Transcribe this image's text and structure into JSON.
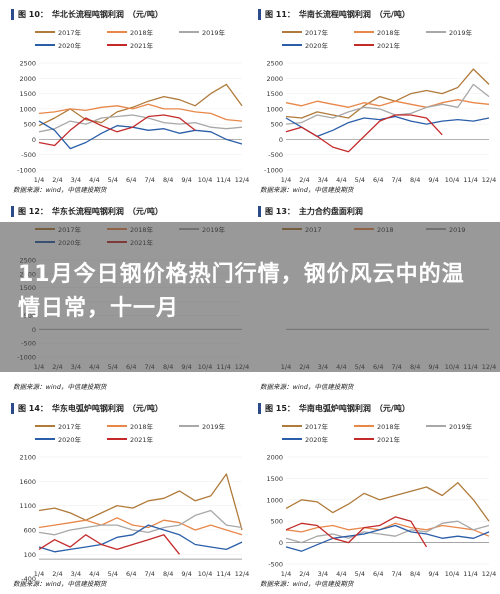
{
  "banner": {
    "text": "11月今日钢价格热门行情，钢价风云中的温情日常，十一月"
  },
  "panels": [
    {
      "id": "p10",
      "label": "图 10：",
      "title": "华北长流程吨钢利润",
      "unit": "（元/吨）",
      "source": "数据来源：wind，中信建投期货"
    },
    {
      "id": "p11",
      "label": "图 11：",
      "title": "华南长流程吨钢利润",
      "unit": "（元/吨）",
      "source": "数据来源：wind，中信建投期货"
    },
    {
      "id": "p12",
      "label": "图 12：",
      "title": "华东长流程吨钢利润",
      "unit": "（元/吨）",
      "source": "数据来源：wind，中信建投期货"
    },
    {
      "id": "p13",
      "label": "图 13：",
      "title": "主力合约盘面利润",
      "unit": "",
      "source": "数据来源：wind，中信建投期货"
    },
    {
      "id": "p14",
      "label": "图 14：",
      "title": "华东电弧炉吨钢利润",
      "unit": "（元/吨）",
      "source": "数据来源：wind，中信建投期货"
    },
    {
      "id": "p15",
      "label": "图 15：",
      "title": "华南电弧炉吨钢利润",
      "unit": "（元/吨）",
      "source": "数据来源：wind，中信建投期货"
    }
  ],
  "colors": {
    "2017": "#b07a3a",
    "2018": "#e8874a",
    "2019": "#a8a8a8",
    "2020": "#2a5ea8",
    "2021": "#c42a2a"
  },
  "chart_data": [
    {
      "type": "line",
      "panel": "p10",
      "ylim": [
        -1000,
        2500
      ],
      "yticks": [
        2500,
        2000,
        1500,
        1000,
        500,
        0,
        -500,
        -1000
      ],
      "xticks": [
        "1/4",
        "2/4",
        "3/4",
        "4/4",
        "5/4",
        "6/4",
        "7/4",
        "8/4",
        "9/4",
        "10/4",
        "11/4",
        "12/4"
      ],
      "series": [
        {
          "name": "2017年",
          "values": [
            450,
            700,
            1000,
            650,
            550,
            900,
            1050,
            1250,
            1400,
            1300,
            1100,
            1500,
            1800,
            1100
          ]
        },
        {
          "name": "2018年",
          "values": [
            850,
            900,
            1000,
            950,
            1050,
            1100,
            1000,
            1150,
            1000,
            1000,
            900,
            850,
            650,
            600
          ]
        },
        {
          "name": "2019年",
          "values": [
            250,
            350,
            600,
            500,
            700,
            750,
            800,
            700,
            550,
            500,
            550,
            400,
            350,
            400
          ]
        },
        {
          "name": "2020年",
          "values": [
            600,
            300,
            -300,
            -100,
            200,
            450,
            400,
            300,
            350,
            200,
            300,
            250,
            0,
            -150
          ]
        },
        {
          "name": "2021年",
          "values": [
            -100,
            -200,
            300,
            700,
            450,
            250,
            400,
            750,
            800,
            700,
            300
          ]
        }
      ]
    },
    {
      "type": "line",
      "panel": "p11",
      "ylim": [
        -1000,
        2500
      ],
      "yticks": [
        2500,
        2000,
        1500,
        1000,
        500,
        0,
        -500,
        -1000
      ],
      "xticks": [
        "1/4",
        "2/4",
        "3/4",
        "4/4",
        "5/4",
        "6/4",
        "7/4",
        "8/4",
        "9/4",
        "10/4",
        "11/4",
        "12/4"
      ],
      "series": [
        {
          "name": "2017年",
          "values": [
            750,
            700,
            900,
            800,
            700,
            1100,
            1400,
            1250,
            1500,
            1600,
            1500,
            1700,
            2300,
            1800
          ]
        },
        {
          "name": "2018年",
          "values": [
            1200,
            1100,
            1250,
            1150,
            1050,
            1200,
            1100,
            1250,
            1150,
            1050,
            1200,
            1300,
            1200,
            1150
          ]
        },
        {
          "name": "2019年",
          "values": [
            500,
            550,
            800,
            700,
            900,
            1050,
            1000,
            800,
            850,
            1050,
            1150,
            1050,
            1800,
            1400
          ]
        },
        {
          "name": "2020年",
          "values": [
            700,
            400,
            100,
            300,
            550,
            700,
            650,
            750,
            600,
            500,
            600,
            650,
            600,
            700
          ]
        },
        {
          "name": "2021年",
          "values": [
            250,
            400,
            100,
            -250,
            -400,
            100,
            600,
            800,
            800,
            700,
            150
          ]
        }
      ]
    },
    {
      "type": "line",
      "panel": "p12",
      "ylim": [
        -1000,
        2500
      ],
      "yticks": [
        2500,
        2000,
        1500,
        1000,
        500,
        0,
        -500,
        -1000
      ],
      "xticks": [
        "1/4",
        "2/4",
        "3/4",
        "4/4",
        "5/4",
        "6/4",
        "7/4",
        "8/4",
        "9/4",
        "10/4",
        "11/4",
        "12/4"
      ],
      "series": [
        {
          "name": "2017年",
          "values": [],
          "legend_only": true
        },
        {
          "name": "2018年",
          "values": [],
          "legend_only": true
        },
        {
          "name": "2019年",
          "values": [],
          "legend_only": true
        },
        {
          "name": "2020年",
          "values": [],
          "legend_only": true
        },
        {
          "name": "2021年",
          "values": [],
          "legend_only": true
        }
      ]
    },
    {
      "type": "line",
      "panel": "p13",
      "ylim": [
        -1000,
        2500
      ],
      "yticks": [],
      "xticks": [
        "1/4",
        "2/4",
        "3/4",
        "4/4",
        "5/4",
        "6/4",
        "7/4",
        "8/4",
        "9/4",
        "10/4",
        "11/4",
        "12/4"
      ],
      "series": [
        {
          "name": "2017",
          "values": [],
          "legend_only": true
        },
        {
          "name": "2018",
          "values": [],
          "legend_only": true
        },
        {
          "name": "2019",
          "values": [],
          "legend_only": true
        }
      ]
    },
    {
      "type": "line",
      "panel": "p14",
      "ylim": [
        -100,
        2100
      ],
      "yticks": [
        2100,
        1600,
        1100,
        600,
        100,
        -400
      ],
      "xticks": [
        "1/4",
        "2/4",
        "3/4",
        "4/4",
        "5/4",
        "6/4",
        "7/4",
        "8/4",
        "9/4",
        "10/4",
        "11/4",
        "12/4"
      ],
      "series": [
        {
          "name": "2017年",
          "values": [
            1000,
            1050,
            950,
            800,
            950,
            1100,
            1050,
            1200,
            1250,
            1400,
            1200,
            1300,
            1750,
            600
          ]
        },
        {
          "name": "2018年",
          "values": [
            650,
            700,
            750,
            800,
            700,
            850,
            700,
            650,
            800,
            750,
            600,
            700,
            600,
            500
          ]
        },
        {
          "name": "2019年",
          "values": [
            550,
            500,
            600,
            650,
            700,
            700,
            600,
            550,
            650,
            700,
            900,
            1000,
            700,
            650
          ]
        },
        {
          "name": "2020年",
          "values": [
            250,
            150,
            200,
            250,
            300,
            450,
            500,
            700,
            600,
            500,
            300,
            250,
            200,
            350
          ]
        },
        {
          "name": "2021年",
          "values": [
            200,
            400,
            250,
            500,
            300,
            200,
            300,
            400,
            500,
            100
          ]
        }
      ]
    },
    {
      "type": "line",
      "panel": "p15",
      "ylim": [
        -500,
        2000
      ],
      "yticks": [
        2000,
        1500,
        1000,
        500,
        0,
        -500
      ],
      "xticks": [
        "1/4",
        "2/4",
        "3/4",
        "4/4",
        "5/4",
        "6/4",
        "7/4",
        "8/4",
        "9/4",
        "10/4",
        "11/4",
        "12/4"
      ],
      "series": [
        {
          "name": "2017年",
          "values": [
            800,
            1000,
            950,
            700,
            900,
            1150,
            1000,
            1100,
            1200,
            1300,
            1100,
            1400,
            1000,
            500
          ]
        },
        {
          "name": "2018年",
          "values": [
            300,
            250,
            350,
            400,
            300,
            350,
            300,
            450,
            350,
            300,
            400,
            350,
            300,
            150
          ]
        },
        {
          "name": "2019年",
          "values": [
            100,
            0,
            150,
            200,
            100,
            250,
            200,
            150,
            300,
            250,
            450,
            500,
            300,
            400
          ]
        },
        {
          "name": "2020年",
          "values": [
            -100,
            -200,
            -50,
            100,
            150,
            200,
            300,
            400,
            250,
            200,
            100,
            150,
            100,
            250
          ]
        },
        {
          "name": "2021年",
          "values": [
            300,
            450,
            400,
            100,
            0,
            350,
            400,
            600,
            500,
            -100
          ]
        }
      ]
    }
  ]
}
